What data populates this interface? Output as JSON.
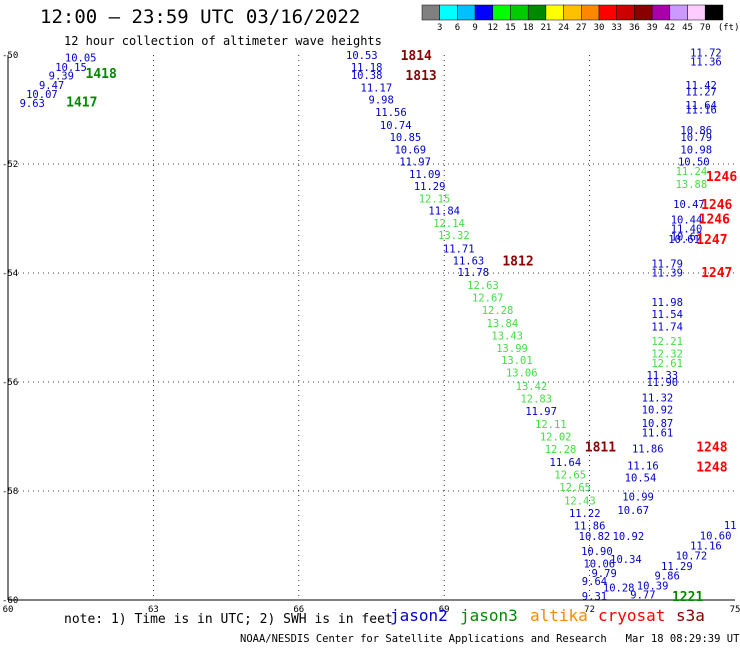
{
  "header": {
    "title": "12:00 – 23:59 UTC 03/16/2022",
    "subtitle": "12 hour collection of altimeter wave heights"
  },
  "footer": {
    "notes": "note: 1) Time is in UTC; 2) SWH is in feet",
    "satellites": [
      {
        "name": "jason2",
        "color": "#0000cc"
      },
      {
        "name": "jason3",
        "color": "#008800"
      },
      {
        "name": "altika",
        "color": "#ff8800"
      },
      {
        "name": "cryosat",
        "color": "#ff0000"
      },
      {
        "name": "s3a",
        "color": "#880000"
      }
    ],
    "credit": "NOAA/NESDIS Center for Satellite Applications and Research",
    "timestamp": "Mar 18 08:29:39 UTC 2022"
  },
  "colorbar": {
    "unit": "(ft)",
    "ticks": [
      "3",
      "6",
      "9",
      "12",
      "15",
      "18",
      "21",
      "24",
      "27",
      "30",
      "33",
      "36",
      "39",
      "42",
      "45",
      "70"
    ],
    "colors": [
      "#808080",
      "#00ffff",
      "#00c0ff",
      "#0000ff",
      "#00ff00",
      "#00cc00",
      "#008800",
      "#ffff00",
      "#ffc000",
      "#ff8800",
      "#ff0000",
      "#cc0000",
      "#880000",
      "#aa00aa",
      "#cc99ff",
      "#ffccff",
      "#000000"
    ]
  },
  "chart_data": {
    "type": "scatter",
    "title": "12:00 – 23:59 UTC 03/16/2022",
    "subtitle": "12 hour collection of altimeter wave heights",
    "x_unit": "longitude",
    "y_unit": "latitude",
    "xlim": [
      60,
      75
    ],
    "ylim": [
      -60,
      -50
    ],
    "x_ticks": [
      "60",
      "63",
      "66",
      "69",
      "72",
      "75"
    ],
    "y_ticks": [
      "-50",
      "-52",
      "-54",
      "-56",
      "-58",
      "-60"
    ],
    "grid": true,
    "colors": {
      "c10": "#0000cc",
      "c12": "#44dd44",
      "track_jason3": "#008800",
      "track_s3a": "#880000",
      "track_cryosat": "#ff0000"
    },
    "points": [
      {
        "x": 61.5,
        "y": -50.05,
        "v": "10.05",
        "c": "c10"
      },
      {
        "x": 61.3,
        "y": -50.22,
        "v": "10.15",
        "c": "c10"
      },
      {
        "x": 61.1,
        "y": -50.38,
        "v": "9.39",
        "c": "c10"
      },
      {
        "x": 60.9,
        "y": -50.55,
        "v": "9.47",
        "c": "c10"
      },
      {
        "x": 60.7,
        "y": -50.72,
        "v": "10.07",
        "c": "c10"
      },
      {
        "x": 60.5,
        "y": -50.88,
        "v": "9.63",
        "c": "c10"
      },
      {
        "x": 67.3,
        "y": -50.0,
        "v": "10.53",
        "c": "c10"
      },
      {
        "x": 67.4,
        "y": -50.22,
        "v": "11.18",
        "c": "c10"
      },
      {
        "x": 67.4,
        "y": -50.37,
        "v": "10.38",
        "c": "c10"
      },
      {
        "x": 67.6,
        "y": -50.6,
        "v": "11.17",
        "c": "c10"
      },
      {
        "x": 67.7,
        "y": -50.82,
        "v": "9.98",
        "c": "c10"
      },
      {
        "x": 67.9,
        "y": -51.05,
        "v": "11.56",
        "c": "c10"
      },
      {
        "x": 68.0,
        "y": -51.28,
        "v": "10.74",
        "c": "c10"
      },
      {
        "x": 68.2,
        "y": -51.5,
        "v": "10.85",
        "c": "c10"
      },
      {
        "x": 68.3,
        "y": -51.73,
        "v": "10.69",
        "c": "c10"
      },
      {
        "x": 68.4,
        "y": -51.95,
        "v": "11.97",
        "c": "c10"
      },
      {
        "x": 68.6,
        "y": -52.18,
        "v": "11.09",
        "c": "c10"
      },
      {
        "x": 68.7,
        "y": -52.4,
        "v": "11.29",
        "c": "c10"
      },
      {
        "x": 68.8,
        "y": -52.63,
        "v": "12.15",
        "c": "c12"
      },
      {
        "x": 69.0,
        "y": -52.85,
        "v": "11.84",
        "c": "c10"
      },
      {
        "x": 69.1,
        "y": -53.08,
        "v": "12.14",
        "c": "c12"
      },
      {
        "x": 69.2,
        "y": -53.3,
        "v": "13.32",
        "c": "c12"
      },
      {
        "x": 69.3,
        "y": -53.55,
        "v": "11.71",
        "c": "c10"
      },
      {
        "x": 69.5,
        "y": -53.77,
        "v": "11.63",
        "c": "c10"
      },
      {
        "x": 69.6,
        "y": -53.98,
        "v": "11.78",
        "c": "c10"
      },
      {
        "x": 69.8,
        "y": -54.22,
        "v": "12.63",
        "c": "c12"
      },
      {
        "x": 69.9,
        "y": -54.45,
        "v": "12.67",
        "c": "c12"
      },
      {
        "x": 70.1,
        "y": -54.68,
        "v": "12.28",
        "c": "c12"
      },
      {
        "x": 70.2,
        "y": -54.92,
        "v": "13.84",
        "c": "c12"
      },
      {
        "x": 70.3,
        "y": -55.15,
        "v": "13.43",
        "c": "c12"
      },
      {
        "x": 70.4,
        "y": -55.38,
        "v": "13.99",
        "c": "c12"
      },
      {
        "x": 70.5,
        "y": -55.6,
        "v": "13.01",
        "c": "c12"
      },
      {
        "x": 70.6,
        "y": -55.83,
        "v": "13.06",
        "c": "c12"
      },
      {
        "x": 70.8,
        "y": -56.07,
        "v": "13.42",
        "c": "c12"
      },
      {
        "x": 70.9,
        "y": -56.3,
        "v": "12.83",
        "c": "c12"
      },
      {
        "x": 71.0,
        "y": -56.53,
        "v": "11.97",
        "c": "c10"
      },
      {
        "x": 71.2,
        "y": -56.77,
        "v": "12.11",
        "c": "c12"
      },
      {
        "x": 71.3,
        "y": -57.0,
        "v": "12.02",
        "c": "c12"
      },
      {
        "x": 71.4,
        "y": -57.23,
        "v": "12.28",
        "c": "c12"
      },
      {
        "x": 71.5,
        "y": -57.47,
        "v": "11.64",
        "c": "c10"
      },
      {
        "x": 71.6,
        "y": -57.7,
        "v": "12.65",
        "c": "c12"
      },
      {
        "x": 71.7,
        "y": -57.93,
        "v": "12.65",
        "c": "c12"
      },
      {
        "x": 71.8,
        "y": -58.17,
        "v": "12.43",
        "c": "c12"
      },
      {
        "x": 71.9,
        "y": -58.4,
        "v": "11.22",
        "c": "c10"
      },
      {
        "x": 72.0,
        "y": -58.63,
        "v": "11.86",
        "c": "c10"
      },
      {
        "x": 72.1,
        "y": -58.83,
        "v": "10.82",
        "c": "c10"
      },
      {
        "x": 72.15,
        "y": -59.1,
        "v": "10.90",
        "c": "c10"
      },
      {
        "x": 72.2,
        "y": -59.33,
        "v": "10.06",
        "c": "c10"
      },
      {
        "x": 72.3,
        "y": -59.5,
        "v": "9.79",
        "c": "c10"
      },
      {
        "x": 72.1,
        "y": -59.65,
        "v": "9.64",
        "c": "c10"
      },
      {
        "x": 72.1,
        "y": -59.93,
        "v": "9.31",
        "c": "c10"
      },
      {
        "x": 72.6,
        "y": -59.77,
        "v": "10.28",
        "c": "c10"
      },
      {
        "x": 73.1,
        "y": -59.9,
        "v": "9.77",
        "c": "c10"
      },
      {
        "x": 73.3,
        "y": -59.73,
        "v": "10.39",
        "c": "c10"
      },
      {
        "x": 73.6,
        "y": -59.55,
        "v": "9.86",
        "c": "c10"
      },
      {
        "x": 73.8,
        "y": -59.38,
        "v": "11.29",
        "c": "c10"
      },
      {
        "x": 74.1,
        "y": -59.18,
        "v": "10.72",
        "c": "c10"
      },
      {
        "x": 74.4,
        "y": -59.0,
        "v": "11.16",
        "c": "c10"
      },
      {
        "x": 74.6,
        "y": -58.82,
        "v": "10.60",
        "c": "c10"
      },
      {
        "x": 74.9,
        "y": -58.62,
        "v": "11",
        "c": "c10"
      },
      {
        "x": 73.2,
        "y": -57.22,
        "v": "11.86",
        "c": "c10"
      },
      {
        "x": 73.1,
        "y": -57.53,
        "v": "11.16",
        "c": "c10"
      },
      {
        "x": 73.05,
        "y": -57.75,
        "v": "10.54",
        "c": "c10"
      },
      {
        "x": 73.0,
        "y": -58.1,
        "v": "10.99",
        "c": "c10"
      },
      {
        "x": 72.9,
        "y": -58.35,
        "v": "10.67",
        "c": "c10"
      },
      {
        "x": 72.8,
        "y": -58.83,
        "v": "10.92",
        "c": "c10"
      },
      {
        "x": 72.75,
        "y": -59.25,
        "v": "10.34",
        "c": "c10"
      },
      {
        "x": 73.6,
        "y": -53.83,
        "v": "11.79",
        "c": "c10"
      },
      {
        "x": 73.6,
        "y": -53.99,
        "v": "11.39",
        "c": "c10"
      },
      {
        "x": 73.6,
        "y": -54.53,
        "v": "11.98",
        "c": "c10"
      },
      {
        "x": 73.6,
        "y": -54.75,
        "v": "11.54",
        "c": "c10"
      },
      {
        "x": 73.6,
        "y": -54.98,
        "v": "11.74",
        "c": "c10"
      },
      {
        "x": 73.6,
        "y": -55.25,
        "v": "12.21",
        "c": "c12"
      },
      {
        "x": 73.6,
        "y": -55.48,
        "v": "12.32",
        "c": "c12"
      },
      {
        "x": 73.6,
        "y": -55.65,
        "v": "12.61",
        "c": "c12"
      },
      {
        "x": 73.5,
        "y": -55.87,
        "v": "11.33",
        "c": "c10"
      },
      {
        "x": 73.5,
        "y": -56.0,
        "v": "11.90",
        "c": "c10"
      },
      {
        "x": 73.4,
        "y": -56.28,
        "v": "11.32",
        "c": "c10"
      },
      {
        "x": 73.4,
        "y": -56.5,
        "v": "10.92",
        "c": "c10"
      },
      {
        "x": 73.4,
        "y": -56.75,
        "v": "10.87",
        "c": "c10"
      },
      {
        "x": 73.4,
        "y": -56.93,
        "v": "11.61",
        "c": "c10"
      },
      {
        "x": 74.4,
        "y": -49.95,
        "v": "11.72",
        "c": "c10"
      },
      {
        "x": 74.4,
        "y": -50.12,
        "v": "11.36",
        "c": "c10"
      },
      {
        "x": 74.3,
        "y": -50.55,
        "v": "11.42",
        "c": "c10"
      },
      {
        "x": 74.3,
        "y": -50.67,
        "v": "11.27",
        "c": "c10"
      },
      {
        "x": 74.3,
        "y": -50.92,
        "v": "11.64",
        "c": "c10"
      },
      {
        "x": 74.3,
        "y": -51.0,
        "v": "11.16",
        "c": "c10"
      },
      {
        "x": 74.2,
        "y": -51.38,
        "v": "10.86",
        "c": "c10"
      },
      {
        "x": 74.2,
        "y": -51.5,
        "v": "10.79",
        "c": "c10"
      },
      {
        "x": 74.2,
        "y": -51.73,
        "v": "10.98",
        "c": "c10"
      },
      {
        "x": 74.15,
        "y": -51.95,
        "v": "10.50",
        "c": "c10"
      },
      {
        "x": 74.1,
        "y": -52.13,
        "v": "11.24",
        "c": "c12"
      },
      {
        "x": 74.1,
        "y": -52.37,
        "v": "13.88",
        "c": "c12"
      },
      {
        "x": 74.05,
        "y": -52.73,
        "v": "10.47",
        "c": "c10"
      },
      {
        "x": 74.0,
        "y": -53.02,
        "v": "10.44",
        "c": "c10"
      },
      {
        "x": 74.0,
        "y": -53.18,
        "v": "11.40",
        "c": "c10"
      },
      {
        "x": 74.0,
        "y": -53.33,
        "v": "10.67",
        "c": "c10"
      },
      {
        "x": 73.95,
        "y": -53.38,
        "v": "10.61",
        "c": "c10"
      }
    ],
    "track_labels": [
      {
        "x": 61.6,
        "y": -50.33,
        "v": "1418",
        "c": "track_jason3"
      },
      {
        "x": 61.2,
        "y": -50.85,
        "v": "1417",
        "c": "track_jason3"
      },
      {
        "x": 68.1,
        "y": -50.0,
        "v": "1814",
        "c": "track_s3a"
      },
      {
        "x": 68.2,
        "y": -50.37,
        "v": "1813",
        "c": "track_s3a"
      },
      {
        "x": 70.2,
        "y": -53.77,
        "v": "1812",
        "c": "track_s3a"
      },
      {
        "x": 71.9,
        "y": -57.18,
        "v": "1811",
        "c": "track_s3a"
      },
      {
        "x": 73.7,
        "y": -59.93,
        "v": "1221",
        "c": "track_jason3"
      },
      {
        "x": 74.2,
        "y": -57.18,
        "v": "1248",
        "c": "track_cryosat"
      },
      {
        "x": 74.2,
        "y": -57.55,
        "v": "1248",
        "c": "track_cryosat"
      },
      {
        "x": 74.4,
        "y": -52.22,
        "v": "1246",
        "c": "track_cryosat"
      },
      {
        "x": 74.3,
        "y": -52.73,
        "v": "1246",
        "c": "track_cryosat"
      },
      {
        "x": 74.25,
        "y": -53.0,
        "v": "1246",
        "c": "track_cryosat"
      },
      {
        "x": 74.2,
        "y": -53.38,
        "v": "1247",
        "c": "track_cryosat"
      },
      {
        "x": 74.3,
        "y": -53.98,
        "v": "1247",
        "c": "track_cryosat"
      }
    ]
  }
}
